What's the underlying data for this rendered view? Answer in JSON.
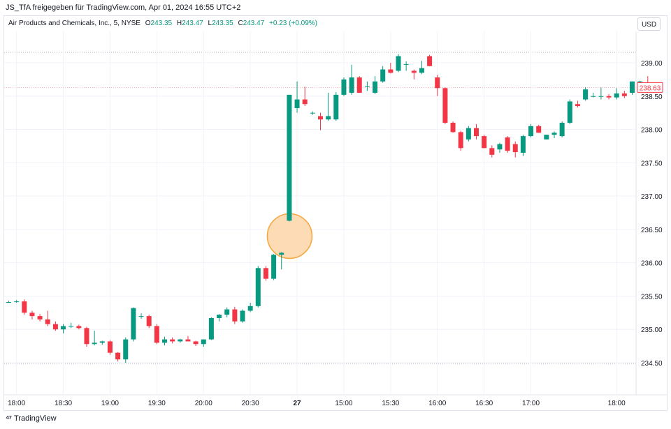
{
  "header": {
    "caption": "JS_TfA freigegeben für TradingView.com, Apr 01, 2024 16:55 UTC+2"
  },
  "legend": {
    "symbol": "Air Products and Chemicals, Inc., 5, NYSE",
    "open_label": "O",
    "open": "243.35",
    "high_label": "H",
    "high": "243.47",
    "low_label": "L",
    "low": "243.35",
    "close_label": "C",
    "close": "243.47",
    "change": "+0.23 (+0.09%)"
  },
  "currency": "USD",
  "branding": "TradingView",
  "colors": {
    "up": "#089981",
    "down": "#f23645",
    "highlight_fill": "#fdd6a8",
    "highlight_stroke": "#f5a63d",
    "grid": "#f0f3fa",
    "axis_text": "#131722"
  },
  "chart_data": {
    "type": "candlestick",
    "last_price": "238.63",
    "y_ticks": [
      "234.50",
      "235.00",
      "235.50",
      "236.00",
      "236.50",
      "237.00",
      "237.50",
      "238.00",
      "238.50",
      "239.00"
    ],
    "ylim": [
      234.3,
      239.3
    ],
    "x_ticks": [
      {
        "label": "18:00",
        "index": 1
      },
      {
        "label": "18:30",
        "index": 7
      },
      {
        "label": "19:00",
        "index": 13
      },
      {
        "label": "19:30",
        "index": 19
      },
      {
        "label": "20:00",
        "index": 25
      },
      {
        "label": "20:30",
        "index": 31
      },
      {
        "label": "27",
        "index": 37,
        "bold": true
      },
      {
        "label": "15:00",
        "index": 43
      },
      {
        "label": "15:30",
        "index": 49
      },
      {
        "label": "16:00",
        "index": 55
      },
      {
        "label": "16:30",
        "index": 61
      },
      {
        "label": "17:00",
        "index": 67
      },
      {
        "label": "18:00",
        "index": 78
      }
    ],
    "highlight_candle_index": 36,
    "candles": [
      {
        "o": 235.4,
        "h": 235.43,
        "l": 235.4,
        "c": 235.41
      },
      {
        "o": 235.41,
        "h": 235.44,
        "l": 235.4,
        "c": 235.42
      },
      {
        "o": 235.42,
        "h": 235.45,
        "l": 235.22,
        "c": 235.25
      },
      {
        "o": 235.25,
        "h": 235.28,
        "l": 235.15,
        "c": 235.2
      },
      {
        "o": 235.2,
        "h": 235.23,
        "l": 235.12,
        "c": 235.15
      },
      {
        "o": 235.15,
        "h": 235.28,
        "l": 235.05,
        "c": 235.08
      },
      {
        "o": 235.08,
        "h": 235.12,
        "l": 234.98,
        "c": 235.0
      },
      {
        "o": 235.0,
        "h": 235.08,
        "l": 234.94,
        "c": 235.05
      },
      {
        "o": 235.05,
        "h": 235.1,
        "l": 235.02,
        "c": 235.05
      },
      {
        "o": 235.05,
        "h": 235.07,
        "l": 235.0,
        "c": 235.02
      },
      {
        "o": 235.02,
        "h": 235.04,
        "l": 234.74,
        "c": 234.78
      },
      {
        "o": 234.78,
        "h": 234.98,
        "l": 234.76,
        "c": 234.8
      },
      {
        "o": 234.8,
        "h": 234.83,
        "l": 234.77,
        "c": 234.82
      },
      {
        "o": 234.82,
        "h": 234.84,
        "l": 234.62,
        "c": 234.65
      },
      {
        "o": 234.65,
        "h": 234.66,
        "l": 234.52,
        "c": 234.55
      },
      {
        "o": 234.55,
        "h": 234.88,
        "l": 234.5,
        "c": 234.85
      },
      {
        "o": 234.85,
        "h": 235.33,
        "l": 234.82,
        "c": 235.32
      },
      {
        "o": 235.2,
        "h": 235.24,
        "l": 235.16,
        "c": 235.2
      },
      {
        "o": 235.2,
        "h": 235.22,
        "l": 235.02,
        "c": 235.05
      },
      {
        "o": 235.05,
        "h": 235.08,
        "l": 234.78,
        "c": 234.8
      },
      {
        "o": 234.8,
        "h": 234.89,
        "l": 234.76,
        "c": 234.85
      },
      {
        "o": 234.85,
        "h": 234.88,
        "l": 234.79,
        "c": 234.82
      },
      {
        "o": 234.82,
        "h": 234.86,
        "l": 234.8,
        "c": 234.85
      },
      {
        "o": 234.85,
        "h": 234.9,
        "l": 234.82,
        "c": 234.82
      },
      {
        "o": 234.82,
        "h": 234.83,
        "l": 234.75,
        "c": 234.78
      },
      {
        "o": 234.78,
        "h": 234.85,
        "l": 234.74,
        "c": 234.85
      },
      {
        "o": 234.85,
        "h": 235.18,
        "l": 234.84,
        "c": 235.17
      },
      {
        "o": 235.17,
        "h": 235.23,
        "l": 235.12,
        "c": 235.22
      },
      {
        "o": 235.22,
        "h": 235.33,
        "l": 235.18,
        "c": 235.3
      },
      {
        "o": 235.3,
        "h": 235.34,
        "l": 235.08,
        "c": 235.12
      },
      {
        "o": 235.12,
        "h": 235.3,
        "l": 235.1,
        "c": 235.28
      },
      {
        "o": 235.28,
        "h": 235.4,
        "l": 235.26,
        "c": 235.35
      },
      {
        "o": 235.35,
        "h": 235.95,
        "l": 235.33,
        "c": 235.92
      },
      {
        "o": 235.92,
        "h": 235.95,
        "l": 235.73,
        "c": 235.76
      },
      {
        "o": 235.76,
        "h": 236.13,
        "l": 235.74,
        "c": 236.12
      },
      {
        "o": 236.12,
        "h": 236.16,
        "l": 235.9,
        "c": 236.15
      },
      {
        "o": 236.63,
        "h": 238.52,
        "l": 236.62,
        "c": 238.52
      },
      {
        "o": 238.32,
        "h": 238.72,
        "l": 238.25,
        "c": 238.45
      },
      {
        "o": 238.45,
        "h": 238.64,
        "l": 238.35,
        "c": 238.38
      },
      {
        "o": 238.25,
        "h": 238.27,
        "l": 238.22,
        "c": 238.25
      },
      {
        "o": 238.2,
        "h": 238.25,
        "l": 237.99,
        "c": 238.15
      },
      {
        "o": 238.15,
        "h": 238.55,
        "l": 238.13,
        "c": 238.2
      },
      {
        "o": 238.15,
        "h": 238.56,
        "l": 238.13,
        "c": 238.52
      },
      {
        "o": 238.52,
        "h": 238.78,
        "l": 238.5,
        "c": 238.75
      },
      {
        "o": 238.55,
        "h": 238.97,
        "l": 238.52,
        "c": 238.78
      },
      {
        "o": 238.78,
        "h": 238.8,
        "l": 238.55,
        "c": 238.55
      },
      {
        "o": 238.65,
        "h": 238.72,
        "l": 238.58,
        "c": 238.65
      },
      {
        "o": 238.55,
        "h": 238.8,
        "l": 238.53,
        "c": 238.72
      },
      {
        "o": 238.72,
        "h": 238.95,
        "l": 238.7,
        "c": 238.9
      },
      {
        "o": 238.9,
        "h": 239.0,
        "l": 238.84,
        "c": 238.85
      },
      {
        "o": 238.88,
        "h": 239.13,
        "l": 238.86,
        "c": 239.1
      },
      {
        "o": 238.98,
        "h": 239.02,
        "l": 238.88,
        "c": 238.98
      },
      {
        "o": 238.88,
        "h": 238.9,
        "l": 238.75,
        "c": 238.85
      },
      {
        "o": 238.85,
        "h": 239.03,
        "l": 238.83,
        "c": 238.92
      },
      {
        "o": 239.1,
        "h": 239.12,
        "l": 238.95,
        "c": 238.95
      },
      {
        "o": 238.78,
        "h": 238.82,
        "l": 238.5,
        "c": 238.62
      },
      {
        "o": 238.62,
        "h": 238.63,
        "l": 238.08,
        "c": 238.1
      },
      {
        "o": 238.1,
        "h": 238.12,
        "l": 237.95,
        "c": 237.96
      },
      {
        "o": 237.96,
        "h": 237.98,
        "l": 237.68,
        "c": 237.72
      },
      {
        "o": 237.85,
        "h": 238.05,
        "l": 237.82,
        "c": 238.02
      },
      {
        "o": 238.02,
        "h": 238.08,
        "l": 237.85,
        "c": 237.9
      },
      {
        "o": 237.9,
        "h": 237.92,
        "l": 237.72,
        "c": 237.72
      },
      {
        "o": 237.72,
        "h": 237.76,
        "l": 237.58,
        "c": 237.62
      },
      {
        "o": 237.7,
        "h": 237.8,
        "l": 237.65,
        "c": 237.78
      },
      {
        "o": 237.88,
        "h": 237.9,
        "l": 237.65,
        "c": 237.68
      },
      {
        "o": 237.78,
        "h": 237.82,
        "l": 237.58,
        "c": 237.66
      },
      {
        "o": 237.65,
        "h": 237.92,
        "l": 237.6,
        "c": 237.9
      },
      {
        "o": 237.9,
        "h": 238.08,
        "l": 237.88,
        "c": 238.05
      },
      {
        "o": 238.05,
        "h": 238.07,
        "l": 237.95,
        "c": 237.95
      },
      {
        "o": 237.85,
        "h": 237.92,
        "l": 237.85,
        "c": 237.92
      },
      {
        "o": 237.92,
        "h": 237.97,
        "l": 237.87,
        "c": 237.95
      },
      {
        "o": 237.9,
        "h": 238.12,
        "l": 237.88,
        "c": 238.1
      },
      {
        "o": 238.1,
        "h": 238.45,
        "l": 238.08,
        "c": 238.42
      },
      {
        "o": 238.38,
        "h": 238.43,
        "l": 238.33,
        "c": 238.35
      },
      {
        "o": 238.45,
        "h": 238.63,
        "l": 238.43,
        "c": 238.6
      },
      {
        "o": 238.5,
        "h": 238.55,
        "l": 238.48,
        "c": 238.5
      },
      {
        "o": 238.5,
        "h": 238.63,
        "l": 238.45,
        "c": 238.5
      },
      {
        "o": 238.5,
        "h": 238.53,
        "l": 238.45,
        "c": 238.48
      },
      {
        "o": 238.48,
        "h": 238.62,
        "l": 238.45,
        "c": 238.54
      },
      {
        "o": 238.54,
        "h": 238.58,
        "l": 238.47,
        "c": 238.5
      },
      {
        "o": 238.55,
        "h": 238.72,
        "l": 238.52,
        "c": 238.72
      },
      {
        "o": 238.7,
        "h": 238.73,
        "l": 238.7,
        "c": 238.72
      },
      {
        "o": 238.7,
        "h": 238.8,
        "l": 238.6,
        "c": 238.63
      }
    ]
  }
}
